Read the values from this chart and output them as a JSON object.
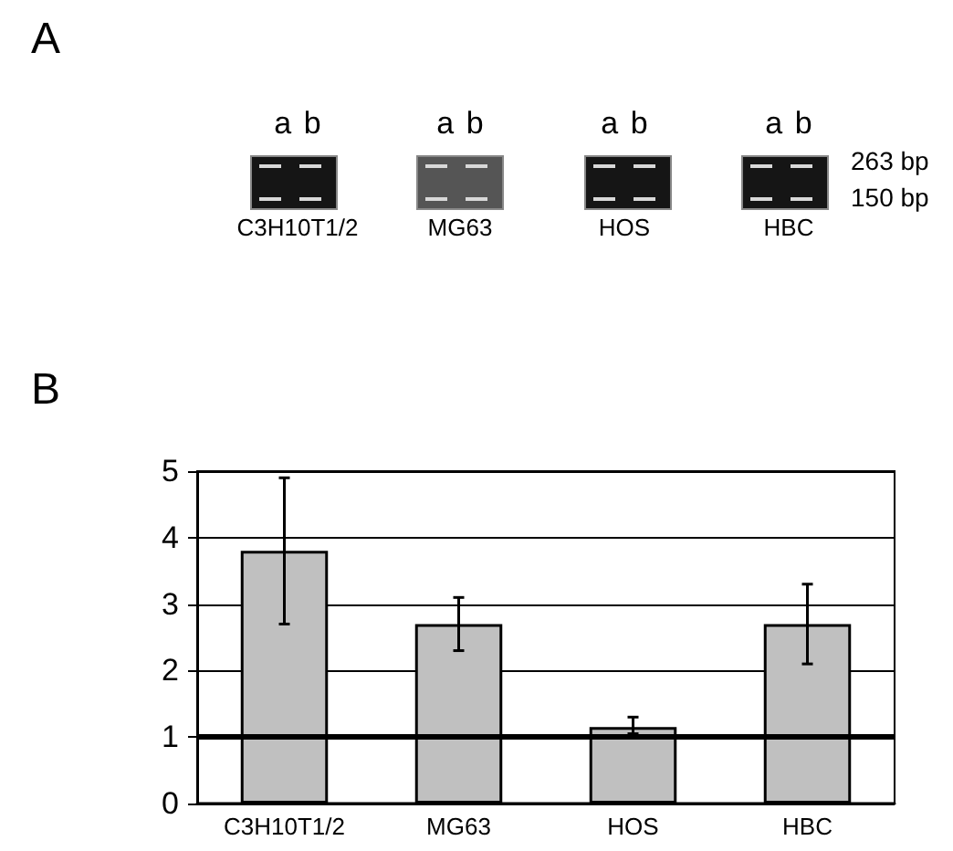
{
  "chart_data": {
    "type": "bar",
    "categories": [
      "C3H10T1/2",
      "MG63",
      "HOS",
      "HBC"
    ],
    "values": [
      3.8,
      2.7,
      1.15,
      2.7
    ],
    "errors": [
      [
        2.7,
        4.9
      ],
      [
        2.3,
        3.1
      ],
      [
        1.05,
        1.3
      ],
      [
        2.1,
        3.3
      ]
    ],
    "color": "#c0c0c0",
    "ylim": [
      0,
      5
    ],
    "yticks": [
      0,
      1,
      2,
      3,
      4,
      5
    ],
    "grid": "y",
    "ref_lines": [
      {
        "axis": "y",
        "value": 1,
        "color": "#000000"
      }
    ],
    "annotations": [
      "A",
      "a b",
      "a b",
      "a b",
      "a b",
      "C3H10T1/2",
      "MG63",
      "HOS",
      "HBC",
      "263 bp",
      "150 bp",
      "B"
    ]
  }
}
